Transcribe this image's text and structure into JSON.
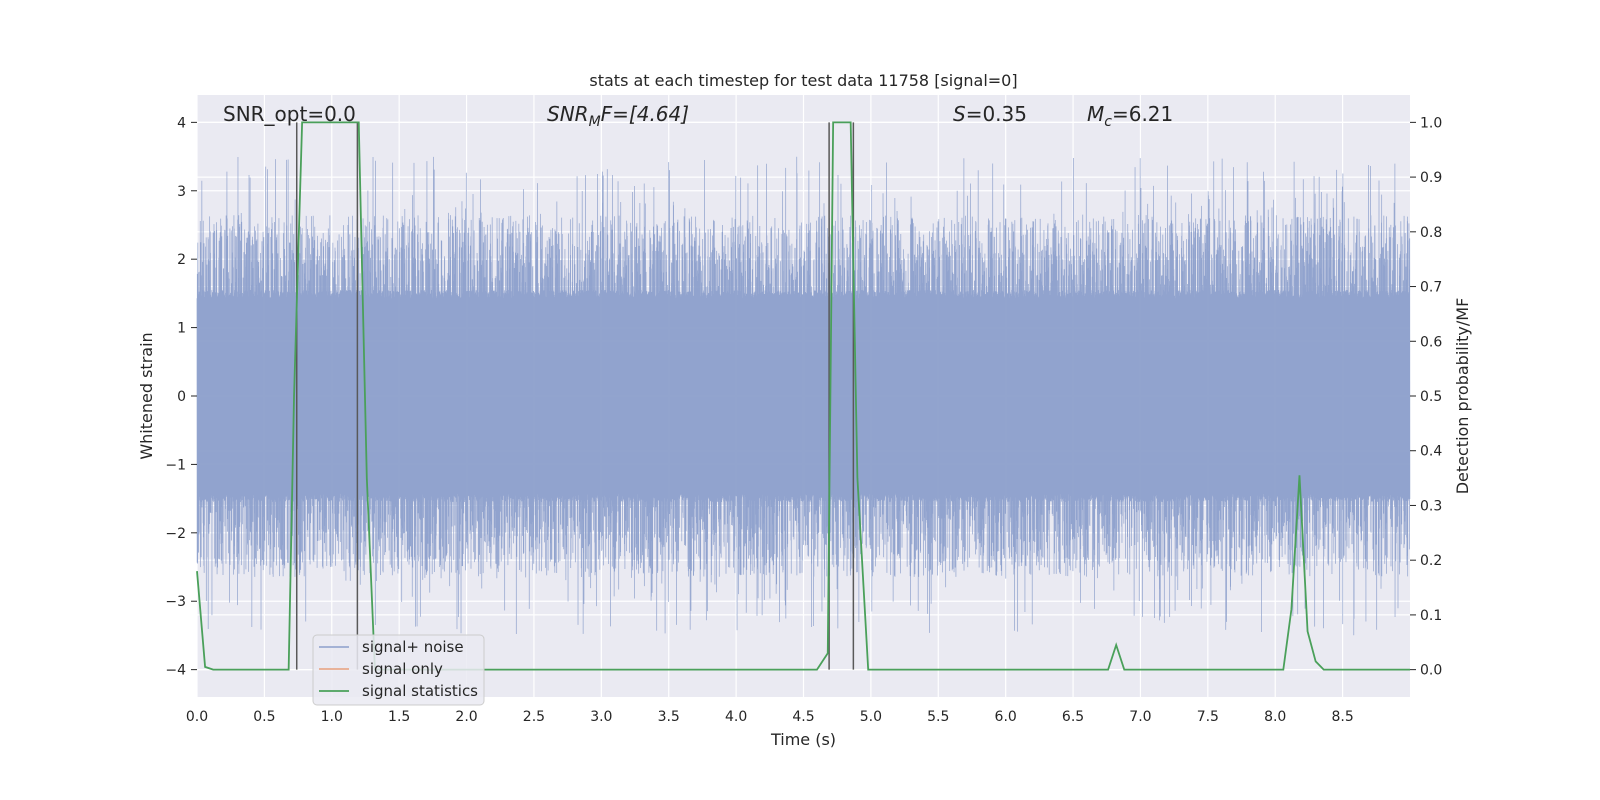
{
  "chart_data": {
    "type": "line",
    "title": "stats at each timestep for test data 11758 [signal=0]",
    "xlabel": "Time (s)",
    "ylabel_left": "Whitened strain",
    "ylabel_right": "Detection probability/MF",
    "xlim": [
      0.0,
      9.0
    ],
    "ylim_left": [
      -4.4,
      4.4
    ],
    "ylim_right": [
      -0.05,
      1.05
    ],
    "x_ticks": [
      "0.0",
      "0.5",
      "1.0",
      "1.5",
      "2.0",
      "2.5",
      "3.0",
      "3.5",
      "4.0",
      "4.5",
      "5.0",
      "5.5",
      "6.0",
      "6.5",
      "7.0",
      "7.5",
      "8.0",
      "8.5"
    ],
    "y_left_ticks": [
      "4",
      "3",
      "2",
      "1",
      "0",
      "−1",
      "−2",
      "−3",
      "−4"
    ],
    "y_right_ticks": [
      "1.0",
      "0.9",
      "0.8",
      "0.7",
      "0.6",
      "0.5",
      "0.4",
      "0.3",
      "0.2",
      "0.1",
      "0.0"
    ],
    "grid": true,
    "legend_position": "lower-left",
    "annotations": {
      "snr_opt": "SNR_opt=0.0",
      "snr_mf_main": "SNR",
      "snr_mf_sub": "M",
      "snr_mf_rest": "F=[4.64]",
      "s_main": "S",
      "s_rest": "=0.35",
      "mc_main": "M",
      "mc_sub": "c",
      "mc_rest": "=6.21"
    },
    "series": [
      {
        "name": "signal+ noise",
        "color": "#8c9fcb",
        "noise_envelope": {
          "core_abs": 1.55,
          "typical_peak_range": [
            1.6,
            3.5
          ],
          "max": 3.5,
          "min": -4.0,
          "samples_per_second": 1000
        }
      },
      {
        "name": "signal only",
        "color": "#e8a07c",
        "x": [],
        "y": []
      },
      {
        "name": "signal statistics",
        "color": "#4aa05a",
        "x": [
          0.0,
          0.06,
          0.12,
          0.68,
          0.72,
          0.78,
          1.2,
          1.26,
          1.32,
          4.6,
          4.68,
          4.72,
          4.85,
          4.9,
          4.98,
          6.76,
          6.82,
          6.88,
          8.06,
          8.12,
          8.18,
          8.24,
          8.3,
          8.36,
          8.42,
          9.0
        ],
        "y": [
          0.18,
          0.005,
          0.0,
          0.0,
          0.5,
          1.0,
          1.0,
          0.35,
          0.0,
          0.0,
          0.03,
          1.0,
          1.0,
          0.35,
          0.0,
          0.0,
          0.045,
          0.0,
          0.0,
          0.11,
          0.355,
          0.07,
          0.015,
          0.0,
          0.0,
          0.0
        ]
      }
    ],
    "vertical_lines": [
      {
        "x": 0.74,
        "ymin": -4.0,
        "ymax": 4.0
      },
      {
        "x": 1.19,
        "ymin": -4.0,
        "ymax": 4.0
      },
      {
        "x": 4.69,
        "ymin": -4.0,
        "ymax": 4.0
      },
      {
        "x": 4.87,
        "ymin": -4.0,
        "ymax": 4.0
      }
    ],
    "colors": {
      "plot_background": "#eaeaf2",
      "grid": "#ffffff",
      "vline": "#595959"
    }
  }
}
